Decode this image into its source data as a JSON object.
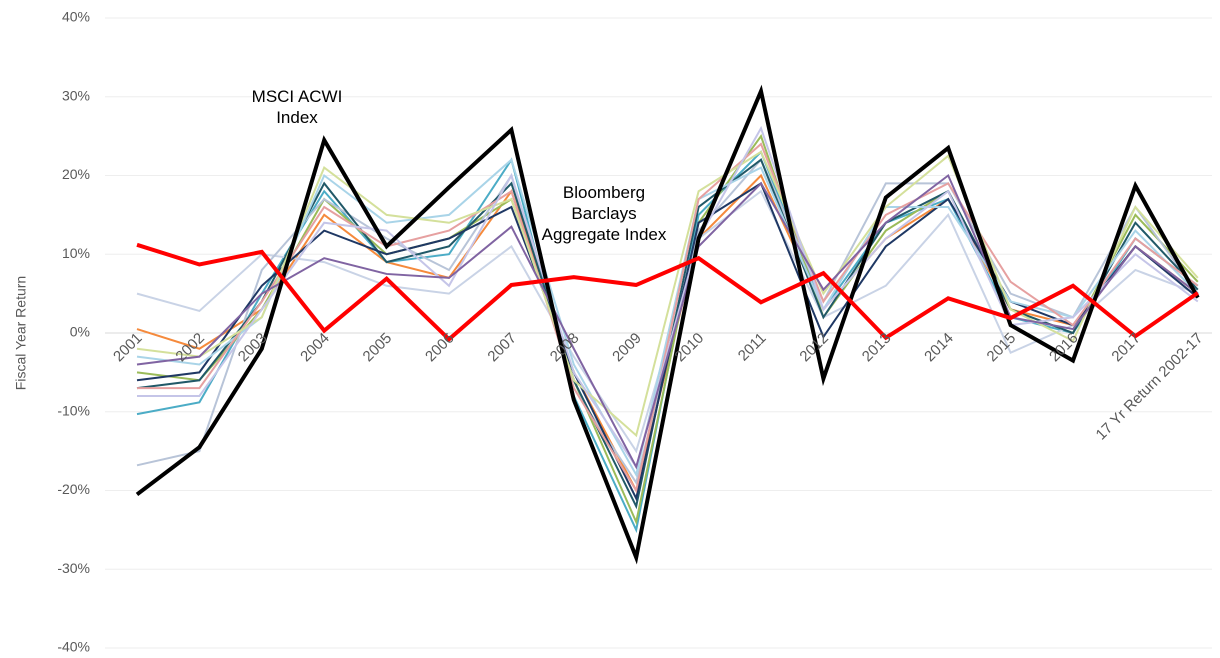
{
  "chart_data": {
    "type": "line",
    "y_label": "Fiscal Year Return",
    "categories": [
      "2001",
      "2002",
      "2003",
      "2004",
      "2005",
      "2006",
      "2007",
      "2008",
      "2009",
      "2010",
      "2011",
      "2012",
      "2013",
      "2014",
      "2015",
      "2016",
      "2017",
      "17 Yr Return 2002-17"
    ],
    "ylim": [
      -40,
      40
    ],
    "yticks": [
      {
        "value": -40,
        "label": "-40%"
      },
      {
        "value": -30,
        "label": "-30%"
      },
      {
        "value": -20,
        "label": "-20%"
      },
      {
        "value": -10,
        "label": "-10%"
      },
      {
        "value": 0,
        "label": "0%"
      },
      {
        "value": 10,
        "label": "10%"
      },
      {
        "value": 20,
        "label": "20%"
      },
      {
        "value": 30,
        "label": "30%"
      },
      {
        "value": 40,
        "label": "40%"
      }
    ],
    "grid": true,
    "series": [
      {
        "color": "#f58a3c",
        "values": [
          0.5,
          -2,
          3,
          15,
          9,
          7,
          18,
          -5,
          -20,
          12,
          20,
          3,
          12,
          17,
          3,
          1,
          11,
          5
        ]
      },
      {
        "color": "#4bacc6",
        "values": [
          -10.3,
          -8.8,
          5,
          18,
          9,
          10,
          22,
          -8,
          -25,
          15,
          23,
          3,
          14,
          17,
          2,
          0,
          12,
          6
        ]
      },
      {
        "color": "#9bbb59",
        "values": [
          -5,
          -6,
          3,
          17,
          10,
          12,
          17,
          -6,
          -24,
          14,
          25,
          2,
          13,
          18,
          3,
          0,
          15,
          6.5
        ]
      },
      {
        "color": "#c9d3e6",
        "values": [
          5,
          2.8,
          10,
          9,
          6,
          5,
          11,
          -3,
          -15,
          12,
          18,
          2,
          6,
          15,
          -2.5,
          1,
          8,
          5
        ]
      },
      {
        "color": "#b8c4d8",
        "values": [
          -16.8,
          -15,
          8,
          17,
          12,
          8,
          20,
          -7,
          -19,
          13,
          22,
          4,
          19,
          19,
          5,
          2,
          16,
          5
        ]
      },
      {
        "color": "#215968",
        "values": [
          -7,
          -6,
          4,
          19,
          9,
          11,
          19,
          -6,
          -22,
          16,
          22,
          2,
          14,
          18,
          3,
          0,
          14,
          5.5
        ]
      },
      {
        "color": "#1f3864",
        "values": [
          -6,
          -5,
          6,
          13,
          10,
          12,
          16,
          -5,
          -21,
          14,
          19,
          -0.5,
          11,
          17,
          4,
          1,
          11,
          4.5
        ]
      },
      {
        "color": "#a9d4e8",
        "values": [
          -3,
          -4,
          2,
          20,
          14,
          15,
          22,
          -4,
          -18,
          17,
          21,
          3,
          16,
          16,
          4,
          2,
          13,
          5
        ]
      },
      {
        "color": "#e6a0a0",
        "values": [
          -7,
          -7,
          4,
          16,
          11,
          13,
          18,
          -7,
          -20,
          17,
          24,
          4,
          15,
          19,
          6.5,
          1,
          12,
          6
        ]
      },
      {
        "color": "#d4e09b",
        "values": [
          -2,
          -3,
          2,
          21,
          15,
          14,
          17,
          -6,
          -13,
          18,
          23,
          5,
          16,
          22.5,
          3,
          -1,
          16,
          7
        ]
      },
      {
        "color": "#c5c5e8",
        "values": [
          -8,
          -8,
          3,
          14,
          13,
          6,
          20,
          -5,
          -17,
          12,
          26,
          3,
          12,
          18,
          1,
          2,
          10,
          4
        ]
      },
      {
        "color": "#8064a2",
        "values": [
          -4,
          -3,
          5,
          9.5,
          7.5,
          7,
          13.5,
          -2,
          -17,
          11,
          19,
          5.5,
          14,
          20,
          2,
          0.5,
          11,
          5
        ]
      },
      {
        "name": "MSCI ACWI Index",
        "color": "#000000",
        "values": [
          -20.5,
          -14.5,
          -2,
          24.5,
          11,
          18.5,
          25.8,
          -8.5,
          -28.5,
          12,
          30.7,
          -5.8,
          17.2,
          23.5,
          1,
          -3.5,
          18.7,
          4.5
        ]
      },
      {
        "name": "Bloomberg Barclays Aggregate Index",
        "color": "#ff0000",
        "values": [
          11.2,
          8.7,
          10.3,
          0.3,
          6.9,
          -0.8,
          6.1,
          7.1,
          6.1,
          9.5,
          3.9,
          7.6,
          -0.6,
          4.4,
          1.9,
          6.0,
          -0.4,
          5.1
        ]
      }
    ]
  }
}
